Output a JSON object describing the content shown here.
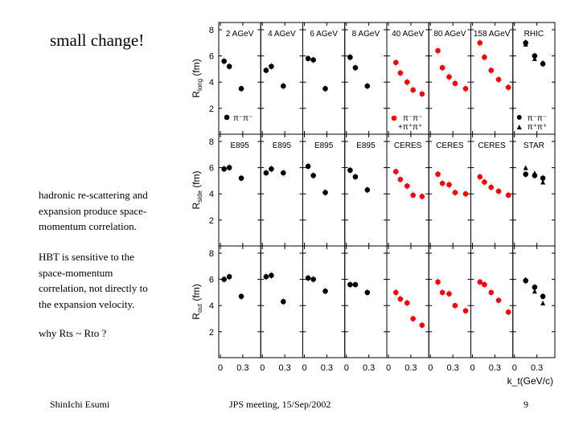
{
  "slide": {
    "title": "small change!",
    "body": [
      "hadronic re-scattering and",
      "expansion produce space-",
      "momentum correlation.",
      "",
      "HBT is sensitive to the",
      "space-momentum",
      "correlation, not directly to",
      "the expansion velocity.",
      "",
      "why Rts ~ Rto ?"
    ],
    "footer": {
      "author": "ShinIchi Esumi",
      "meeting": "JPS meeting, 15/Sep/2002",
      "page": "9"
    }
  },
  "chart_data": {
    "type": "scatter",
    "xlabel": "k_t(GeV/c)",
    "xticks": [
      "0",
      "0.3"
    ],
    "yticks": [
      "2",
      "4",
      "6",
      "8"
    ],
    "xlim": [
      -0.02,
      0.54
    ],
    "ylim": [
      0.2,
      8.6
    ],
    "colors": {
      "black": "#000000",
      "red": "#ff0000"
    },
    "rows": [
      {
        "ylabel": "R",
        "ysub": "long",
        "yunit": " (fm)",
        "panels": [
          {
            "label": "2 AGeV",
            "color": "black",
            "x": [
              0.05,
              0.12,
              0.28
            ],
            "y": [
              5.6,
              5.2,
              3.5
            ]
          },
          {
            "label": "4 AGeV",
            "color": "black",
            "x": [
              0.05,
              0.12,
              0.28
            ],
            "y": [
              4.9,
              5.2,
              3.7
            ]
          },
          {
            "label": "6 AGeV",
            "color": "black",
            "x": [
              0.05,
              0.12,
              0.28
            ],
            "y": [
              5.8,
              5.7,
              3.5
            ]
          },
          {
            "label": "8 AGeV",
            "color": "black",
            "x": [
              0.05,
              0.12,
              0.28
            ],
            "y": [
              5.9,
              5.1,
              3.7
            ]
          },
          {
            "label": "40 AGeV",
            "color": "red",
            "x": [
              0.1,
              0.16,
              0.25,
              0.33,
              0.45
            ],
            "y": [
              5.5,
              4.7,
              4.0,
              3.4,
              3.1
            ]
          },
          {
            "label": "80 AGeV",
            "color": "red",
            "x": [
              0.1,
              0.16,
              0.25,
              0.33,
              0.47
            ],
            "y": [
              6.4,
              5.1,
              4.4,
              3.9,
              3.5
            ]
          },
          {
            "label": "158 AGeV",
            "color": "red",
            "x": [
              0.1,
              0.16,
              0.25,
              0.35,
              0.48
            ],
            "y": [
              7.0,
              5.9,
              4.9,
              4.2,
              3.6
            ]
          },
          {
            "label": "RHIC",
            "color": "black",
            "x": [
              0.15,
              0.27,
              0.38
            ],
            "y": [
              7.0,
              6.0,
              5.4
            ],
            "y_triangle": [
              6.9,
              5.8,
              5.5
            ]
          }
        ]
      },
      {
        "ylabel": "R",
        "ysub": "side",
        "yunit": " (fm)",
        "panels": [
          {
            "label": "E895",
            "color": "black",
            "x": [
              0.05,
              0.12,
              0.28
            ],
            "y": [
              5.9,
              6.0,
              5.2
            ]
          },
          {
            "label": "E895",
            "color": "black",
            "x": [
              0.05,
              0.12,
              0.28
            ],
            "y": [
              5.6,
              5.9,
              5.6
            ]
          },
          {
            "label": "E895",
            "color": "black",
            "x": [
              0.05,
              0.12,
              0.28
            ],
            "y": [
              6.1,
              5.4,
              4.1
            ]
          },
          {
            "label": "E895",
            "color": "black",
            "x": [
              0.05,
              0.12,
              0.28
            ],
            "y": [
              5.8,
              5.3,
              4.3
            ]
          },
          {
            "label": "CERES",
            "color": "red",
            "x": [
              0.1,
              0.16,
              0.25,
              0.33,
              0.45
            ],
            "y": [
              5.7,
              5.1,
              4.6,
              3.9,
              3.8
            ]
          },
          {
            "label": "CERES",
            "color": "red",
            "x": [
              0.1,
              0.16,
              0.25,
              0.33,
              0.47
            ],
            "y": [
              5.5,
              4.8,
              4.7,
              4.1,
              4.0
            ]
          },
          {
            "label": "CERES",
            "color": "red",
            "x": [
              0.1,
              0.16,
              0.25,
              0.35,
              0.48
            ],
            "y": [
              5.3,
              4.9,
              4.5,
              4.2,
              3.9
            ]
          },
          {
            "label": "STAR",
            "color": "black",
            "x": [
              0.15,
              0.27,
              0.38
            ],
            "y": [
              5.5,
              5.4,
              5.2
            ],
            "y_triangle": [
              6.0,
              5.6,
              4.9
            ]
          }
        ]
      },
      {
        "ylabel": "R",
        "ysub": "out",
        "yunit": " (fm)",
        "panels": [
          {
            "label": "",
            "color": "black",
            "x": [
              0.05,
              0.12,
              0.28
            ],
            "y": [
              6.0,
              6.2,
              4.7
            ]
          },
          {
            "label": "",
            "color": "black",
            "x": [
              0.05,
              0.12,
              0.28
            ],
            "y": [
              6.2,
              6.3,
              4.3
            ]
          },
          {
            "label": "",
            "color": "black",
            "x": [
              0.05,
              0.12,
              0.28
            ],
            "y": [
              6.1,
              6.0,
              5.1
            ]
          },
          {
            "label": "",
            "color": "black",
            "x": [
              0.05,
              0.12,
              0.28
            ],
            "y": [
              5.6,
              5.6,
              5.0
            ]
          },
          {
            "label": "",
            "color": "red",
            "x": [
              0.1,
              0.16,
              0.25,
              0.33,
              0.45
            ],
            "y": [
              5.0,
              4.5,
              4.2,
              3.0,
              2.5
            ]
          },
          {
            "label": "",
            "color": "red",
            "x": [
              0.1,
              0.16,
              0.25,
              0.33,
              0.47
            ],
            "y": [
              5.8,
              5.0,
              4.9,
              4.0,
              3.6
            ]
          },
          {
            "label": "",
            "color": "red",
            "x": [
              0.1,
              0.16,
              0.25,
              0.35,
              0.48
            ],
            "y": [
              5.8,
              5.6,
              5.0,
              4.4,
              3.5
            ]
          },
          {
            "label": "",
            "color": "black",
            "x": [
              0.15,
              0.27,
              0.38
            ],
            "y": [
              5.9,
              5.4,
              4.7
            ],
            "y_triangle": [
              6.0,
              5.1,
              4.2
            ]
          }
        ]
      }
    ],
    "legends": {
      "pim_label": "π⁻π⁻",
      "pip_label": "+π⁺π⁺",
      "rhic_pim": "π⁻π⁻",
      "rhic_pip": "π⁺π⁺"
    }
  }
}
